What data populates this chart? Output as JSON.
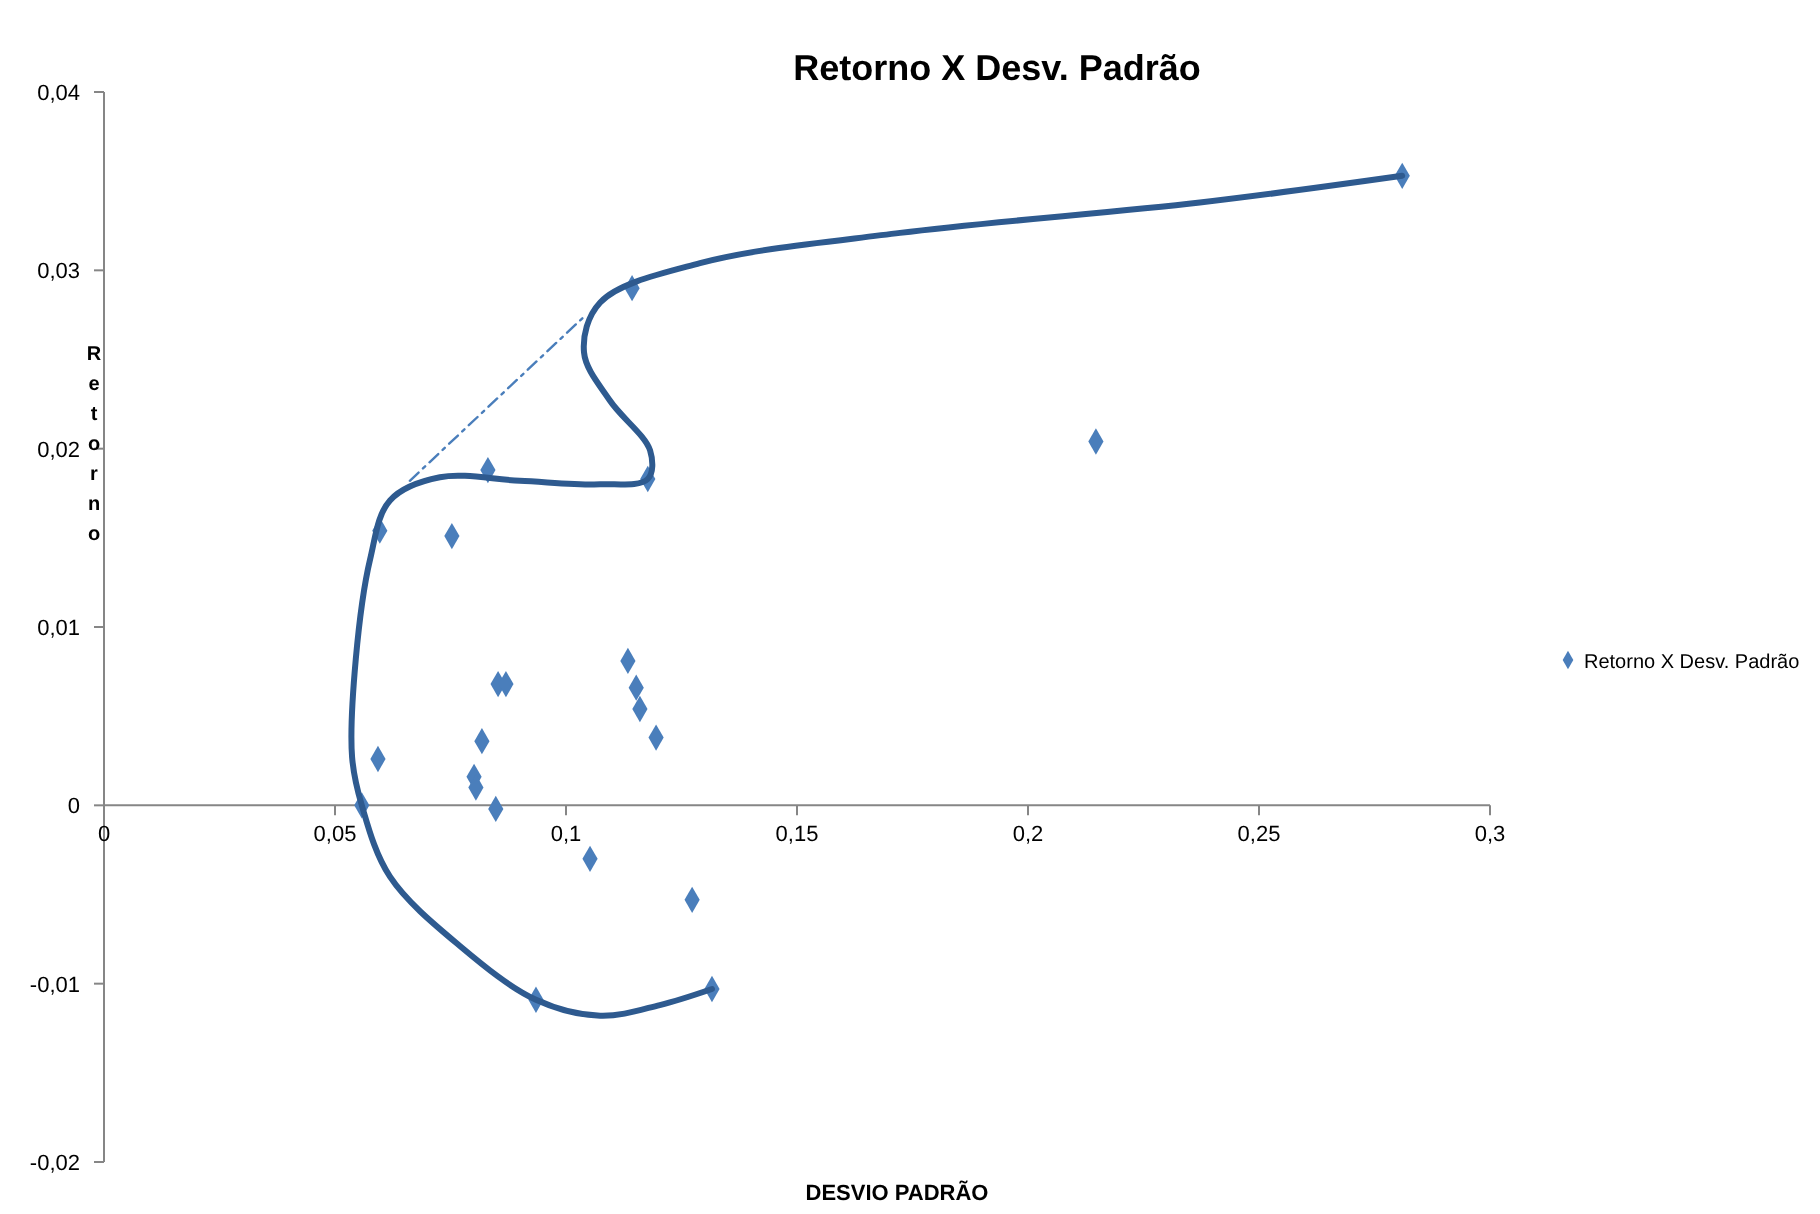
{
  "chart_data": {
    "type": "scatter",
    "title": "Retorno X Desv. Padrão",
    "xlabel": "DESVIO PADRÃO",
    "ylabel": "Retorno",
    "xlim": [
      0,
      0.3
    ],
    "ylim": [
      -0.02,
      0.04
    ],
    "xticks": [
      0,
      {
        "value": 0.05,
        "label": "0,05"
      },
      {
        "value": 0.1,
        "label": "0,1"
      },
      {
        "value": 0.15,
        "label": "0,15"
      },
      {
        "value": 0.2,
        "label": "0,2"
      },
      {
        "value": 0.25,
        "label": "0,25"
      },
      {
        "value": 0.3,
        "label": "0,3"
      }
    ],
    "yticks": [
      {
        "value": -0.02,
        "label": "-0,02"
      },
      {
        "value": -0.01,
        "label": "-0,01"
      },
      0,
      {
        "value": 0.01,
        "label": "0,01"
      },
      {
        "value": 0.02,
        "label": "0,02"
      },
      {
        "value": 0.03,
        "label": "0,03"
      },
      {
        "value": 0.04,
        "label": "0,04"
      }
    ],
    "grid": false,
    "legend": "right",
    "series": [
      {
        "name": "Retorno X Desv. Padrão",
        "marker": "diamond",
        "color": "#4a7ebb",
        "x": [
          0.281,
          0.1143,
          0.2147,
          0.0831,
          0.1177,
          0.0597,
          0.0753,
          0.1134,
          0.1152,
          0.0853,
          0.087,
          0.116,
          0.1195,
          0.0818,
          0.0593,
          0.0801,
          0.0805,
          0.0848,
          0.0558,
          0.1052,
          0.1273,
          0.1316,
          0.0935
        ],
        "values": [
          0.0353,
          0.029,
          0.0204,
          0.0188,
          0.0183,
          0.0154,
          0.0151,
          0.0081,
          0.0066,
          0.0068,
          0.0068,
          0.0054,
          0.0038,
          0.0036,
          0.0026,
          0.0016,
          0.001,
          -0.0002,
          0,
          -0.003,
          -0.0053,
          -0.0103,
          -0.0109
        ]
      },
      {
        "type": "line",
        "marker": "none",
        "line_style": "solid",
        "color": "#2e5a8f",
        "x": [
          0.281,
          0.2372,
          0.1723,
          0.129,
          0.1074,
          0.1039,
          0.1095,
          0.1182,
          0.1177,
          0.1074,
          0.09,
          0.0727,
          0.0619,
          0.0576,
          0.0545,
          0.0537,
          0.0558,
          0.0619,
          0.0771,
          0.0935,
          0.1074,
          0.1203,
          0.1316
        ],
        "values": [
          0.0353,
          0.0338,
          0.0321,
          0.0304,
          0.0282,
          0.0254,
          0.0227,
          0.0199,
          0.0183,
          0.018,
          0.0182,
          0.0184,
          0.0171,
          0.0138,
          0.0082,
          0.0027,
          0,
          -0.004,
          -0.0079,
          -0.0109,
          -0.0118,
          -0.0112,
          -0.0103
        ]
      },
      {
        "type": "line",
        "marker": "none",
        "line_style": "dashed",
        "color": "#4a7ebb",
        "x": [
          0.0662,
          0.1039
        ],
        "values": [
          0.0182,
          0.0274
        ]
      }
    ]
  }
}
